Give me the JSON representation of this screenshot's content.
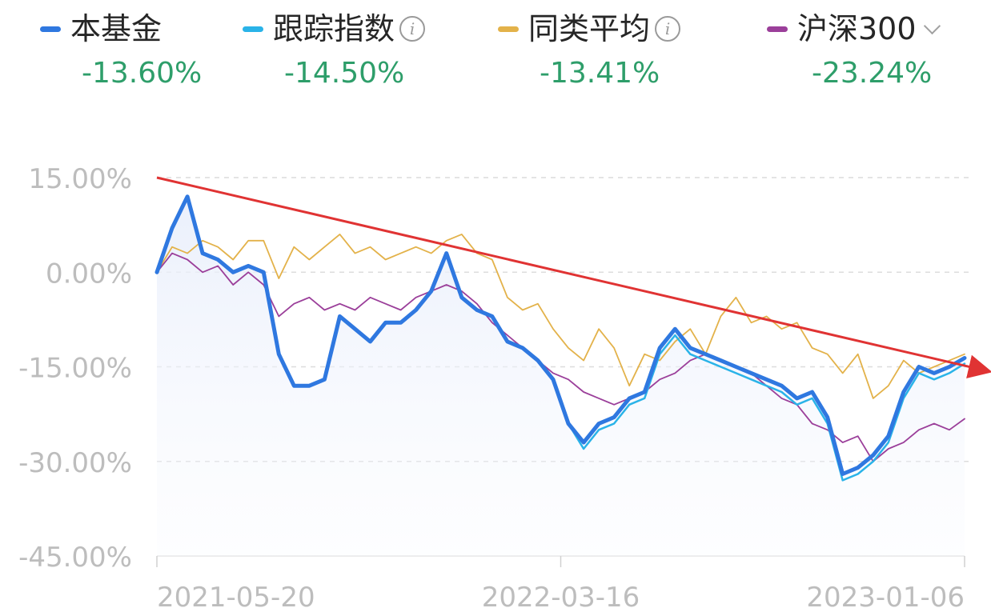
{
  "legend": [
    {
      "name": "本基金",
      "value": "-13.60%",
      "color": "#2f78e0",
      "info": false,
      "dropdown": false
    },
    {
      "name": "跟踪指数",
      "value": "-14.50%",
      "color": "#2ab3e8",
      "info": true,
      "dropdown": false
    },
    {
      "name": "同类平均",
      "value": "-13.41%",
      "color": "#e3b24a",
      "info": true,
      "dropdown": false
    },
    {
      "name": "沪深300",
      "value": "-23.24%",
      "color": "#9b3f9a",
      "info": false,
      "dropdown": true
    }
  ],
  "info_icon": "info-circle-icon",
  "dropdown_icon": "chevron-down-icon",
  "chart_data": {
    "type": "line",
    "ylim": [
      -45,
      15
    ],
    "y_ticks": [
      "15.00%",
      "0.00%",
      "-15.00%",
      "-30.00%",
      "-45.00%"
    ],
    "y_tick_values": [
      15,
      0,
      -15,
      -30,
      -45
    ],
    "x_tick_labels": [
      "2021-05-20",
      "2022-03-16",
      "2023-01-06"
    ],
    "x_tick_positions": [
      0,
      0.5,
      1
    ],
    "grid": true,
    "series": [
      {
        "name": "同类平均",
        "color": "#e3b24a",
        "values": [
          0,
          4,
          3,
          5,
          4,
          2,
          5,
          5,
          -1,
          4,
          2,
          4,
          6,
          3,
          4,
          2,
          3,
          4,
          3,
          5,
          6,
          3,
          2,
          -4,
          -6,
          -5,
          -9,
          -12,
          -14,
          -9,
          -12,
          -18,
          -13,
          -14,
          -11,
          -9,
          -13,
          -7,
          -4,
          -8,
          -7,
          -9,
          -8,
          -12,
          -13,
          -16,
          -13,
          -20,
          -18,
          -14,
          -16,
          -15,
          -14,
          -13
        ]
      },
      {
        "name": "沪深300",
        "color": "#9b3f9a",
        "values": [
          0,
          3,
          2,
          0,
          1,
          -2,
          0,
          -2,
          -7,
          -5,
          -4,
          -6,
          -5,
          -6,
          -4,
          -5,
          -6,
          -4,
          -3,
          -2,
          -3,
          -5,
          -8,
          -10,
          -12,
          -14,
          -16,
          -17,
          -19,
          -20,
          -21,
          -20,
          -19,
          -17,
          -16,
          -14,
          -13,
          -14,
          -15,
          -16,
          -18,
          -20,
          -21,
          -24,
          -25,
          -27,
          -26,
          -30,
          -28,
          -27,
          -25,
          -24,
          -25,
          -23.24
        ]
      },
      {
        "name": "跟踪指数",
        "color": "#2ab3e8",
        "values": [
          0,
          7,
          12,
          3,
          2,
          0,
          1,
          0,
          -13,
          -18,
          -18,
          -17,
          -7,
          -9,
          -11,
          -8,
          -8,
          -6,
          -3,
          3,
          -4,
          -6,
          -7,
          -11,
          -12,
          -14,
          -17,
          -24,
          -28,
          -25,
          -24,
          -21,
          -20,
          -13,
          -10,
          -13,
          -14,
          -15,
          -16,
          -17,
          -18,
          -19,
          -21,
          -20,
          -24,
          -33,
          -32,
          -30,
          -27,
          -20,
          -16,
          -17,
          -16,
          -14.5
        ]
      },
      {
        "name": "本基金",
        "color": "#2f78e0",
        "values": [
          0,
          7,
          12,
          3,
          2,
          0,
          1,
          0,
          -13,
          -18,
          -18,
          -17,
          -7,
          -9,
          -11,
          -8,
          -8,
          -6,
          -3,
          3,
          -4,
          -6,
          -7,
          -11,
          -12,
          -14,
          -17,
          -24,
          -27,
          -24,
          -23,
          -20,
          -19,
          -12,
          -9,
          -12,
          -13,
          -14,
          -15,
          -16,
          -17,
          -18,
          -20,
          -19,
          -23,
          -32,
          -31,
          -29,
          -26,
          -19,
          -15,
          -16,
          -15,
          -13.6
        ]
      }
    ],
    "annotation": {
      "type": "trend-arrow",
      "color": "#e03333",
      "from": [
        0,
        15
      ],
      "to": [
        1.03,
        -15.5
      ]
    }
  }
}
